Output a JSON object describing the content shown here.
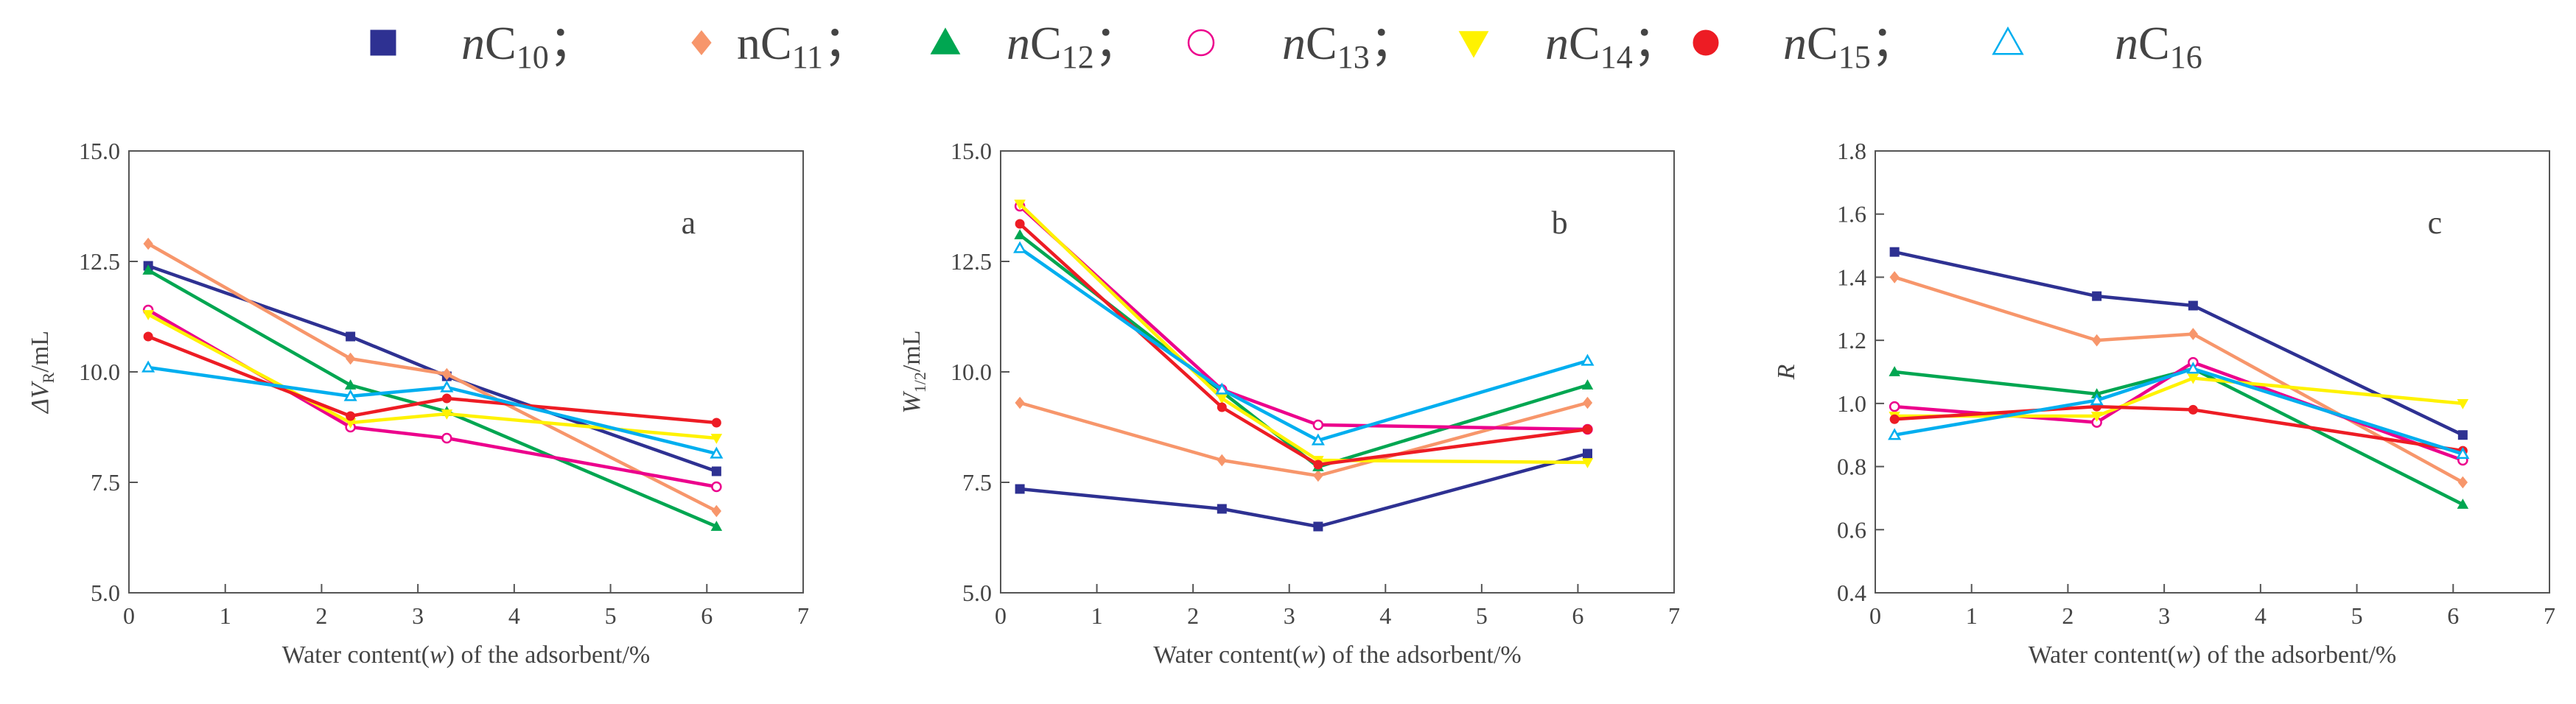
{
  "legend": [
    {
      "key": "C10",
      "prefix": "n",
      "italic": true,
      "base": "C",
      "sub": "10",
      "sep": "；",
      "color": "#2e3192",
      "marker": "square",
      "filled": true
    },
    {
      "key": "C11",
      "prefix": "n",
      "italic": false,
      "base": "C",
      "sub": "11",
      "sep": "；",
      "color": "#f7966b",
      "marker": "diamond",
      "filled": true
    },
    {
      "key": "C12",
      "prefix": "n",
      "italic": true,
      "base": "C",
      "sub": "12",
      "sep": "；",
      "color": "#00a651",
      "marker": "triangle",
      "filled": true
    },
    {
      "key": "C13",
      "prefix": "n",
      "italic": true,
      "base": "C",
      "sub": "13",
      "sep": "；",
      "color": "#ec008c",
      "marker": "circle",
      "filled": false
    },
    {
      "key": "C14",
      "prefix": "n",
      "italic": true,
      "base": "C",
      "sub": "14",
      "sep": "；",
      "color": "#fff200",
      "marker": "triangle-down",
      "filled": true
    },
    {
      "key": "C15",
      "prefix": "n",
      "italic": true,
      "base": "C",
      "sub": "15",
      "sep": "；",
      "color": "#ed1c24",
      "marker": "circle",
      "filled": true
    },
    {
      "key": "C16",
      "prefix": "n",
      "italic": true,
      "base": "C",
      "sub": "16",
      "sep": "",
      "color": "#00aeef",
      "marker": "triangle",
      "filled": false
    }
  ],
  "chart_data": [
    {
      "type": "line",
      "panel": "a",
      "ylabel_main": "ΔV",
      "ylabel_sub": "R",
      "ylabel_unit": "/mL",
      "xlabel_pre": "Water content(",
      "xlabel_var": "w",
      "xlabel_post": ") of the adsorbent/%",
      "xlim": [
        0,
        7
      ],
      "ylim": [
        5,
        15
      ],
      "xticks": [
        "0",
        "1",
        "2",
        "3",
        "4",
        "5",
        "6",
        "7"
      ],
      "yticks": [
        "5.0",
        "7.5",
        "10.0",
        "12.5",
        "15.0"
      ],
      "x": [
        0.2,
        2.3,
        3.3,
        6.1
      ],
      "series": [
        {
          "name": "C10",
          "values": [
            12.4,
            10.8,
            9.9,
            7.75
          ]
        },
        {
          "name": "C11",
          "values": [
            12.9,
            10.3,
            9.95,
            6.85
          ]
        },
        {
          "name": "C12",
          "values": [
            12.3,
            9.7,
            9.1,
            6.5
          ]
        },
        {
          "name": "C13",
          "values": [
            11.4,
            8.75,
            8.5,
            7.4
          ]
        },
        {
          "name": "C14",
          "values": [
            11.3,
            8.85,
            9.05,
            8.5
          ]
        },
        {
          "name": "C15",
          "values": [
            10.8,
            9.0,
            9.4,
            8.85
          ]
        },
        {
          "name": "C16",
          "values": [
            10.1,
            9.45,
            9.65,
            8.15
          ]
        }
      ]
    },
    {
      "type": "line",
      "panel": "b",
      "ylabel_main": "W",
      "ylabel_sub": "1/2",
      "ylabel_unit": "/mL",
      "xlabel_pre": "Water content(",
      "xlabel_var": "w",
      "xlabel_post": ") of the adsorbent/%",
      "xlim": [
        0,
        7
      ],
      "ylim": [
        5,
        15
      ],
      "xticks": [
        "0",
        "1",
        "2",
        "3",
        "4",
        "5",
        "6",
        "7"
      ],
      "yticks": [
        "5.0",
        "7.5",
        "10.0",
        "12.5",
        "15.0"
      ],
      "x": [
        0.2,
        2.3,
        3.3,
        6.1
      ],
      "series": [
        {
          "name": "C10",
          "values": [
            7.35,
            6.9,
            6.5,
            8.15
          ]
        },
        {
          "name": "C11",
          "values": [
            9.3,
            8.0,
            7.65,
            9.3
          ]
        },
        {
          "name": "C12",
          "values": [
            13.1,
            9.55,
            7.85,
            9.7
          ]
        },
        {
          "name": "C13",
          "values": [
            13.75,
            9.6,
            8.8,
            8.7
          ]
        },
        {
          "name": "C14",
          "values": [
            13.8,
            9.4,
            8.0,
            7.95
          ]
        },
        {
          "name": "C15",
          "values": [
            13.35,
            9.2,
            7.9,
            8.7
          ]
        },
        {
          "name": "C16",
          "values": [
            12.8,
            9.6,
            8.45,
            10.25
          ]
        }
      ]
    },
    {
      "type": "line",
      "panel": "c",
      "ylabel_main": "R",
      "ylabel_sub": "",
      "ylabel_unit": "",
      "xlabel_pre": "Water content(",
      "xlabel_var": "w",
      "xlabel_post": ") of the adsorbent/%",
      "xlim": [
        0,
        7
      ],
      "ylim": [
        0.4,
        1.8
      ],
      "xticks": [
        "0",
        "1",
        "2",
        "3",
        "4",
        "5",
        "6",
        "7"
      ],
      "yticks": [
        "0.4",
        "0.6",
        "0.8",
        "1.0",
        "1.2",
        "1.4",
        "1.6",
        "1.8"
      ],
      "x": [
        0.2,
        2.3,
        3.3,
        6.1
      ],
      "series": [
        {
          "name": "C10",
          "values": [
            1.48,
            1.34,
            1.31,
            0.9
          ]
        },
        {
          "name": "C11",
          "values": [
            1.4,
            1.2,
            1.22,
            0.75
          ]
        },
        {
          "name": "C12",
          "values": [
            1.1,
            1.03,
            1.11,
            0.68
          ]
        },
        {
          "name": "C13",
          "values": [
            0.99,
            0.94,
            1.13,
            0.82
          ]
        },
        {
          "name": "C14",
          "values": [
            0.96,
            0.96,
            1.08,
            1.0
          ]
        },
        {
          "name": "C15",
          "values": [
            0.95,
            0.99,
            0.98,
            0.85
          ]
        },
        {
          "name": "C16",
          "values": [
            0.9,
            1.01,
            1.11,
            0.84
          ]
        }
      ]
    }
  ]
}
